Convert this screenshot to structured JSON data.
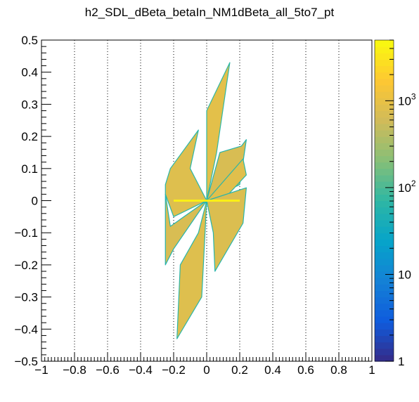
{
  "chart_data": {
    "type": "heatmap",
    "title": "h2_SDL_dBeta_betaIn_NM1dBeta_all_5to7_pt",
    "xlabel": "",
    "ylabel": "",
    "xlim": [
      -1,
      1
    ],
    "ylim": [
      -0.5,
      0.5
    ],
    "x_ticks": [
      -1,
      -0.8,
      -0.6,
      -0.4,
      -0.2,
      0,
      0.2,
      0.4,
      0.6,
      0.8,
      1
    ],
    "x_tick_labels": [
      "−1",
      "−0.8",
      "−0.6",
      "−0.4",
      "−0.2",
      "0",
      "0.2",
      "0.4",
      "0.6",
      "0.8",
      "1"
    ],
    "y_ticks": [
      -0.5,
      -0.4,
      -0.3,
      -0.2,
      -0.1,
      0,
      0.1,
      0.2,
      0.3,
      0.4,
      0.5
    ],
    "y_tick_labels": [
      "−0.5",
      "−0.4",
      "−0.3",
      "−0.2",
      "−0.1",
      "0",
      "0.1",
      "0.2",
      "0.3",
      "0.4",
      "0.5"
    ],
    "vertical_grid": true,
    "colorbar": {
      "scale": "log",
      "range": [
        1,
        5000
      ],
      "labels": [
        {
          "value": 1,
          "label": "1"
        },
        {
          "value": 10,
          "label": "10"
        },
        {
          "value": 100,
          "label": "10",
          "exp": "2"
        },
        {
          "value": 1000,
          "label": "10",
          "exp": "3"
        }
      ]
    },
    "regions": [
      {
        "name": "upper-left-band",
        "points": [
          [
            -0.25,
            0.05
          ],
          [
            -0.22,
            0.1
          ],
          [
            -0.05,
            0.22
          ],
          [
            -0.1,
            0.1
          ],
          [
            0,
            0
          ],
          [
            -0.2,
            -0.05
          ],
          [
            -0.25,
            0.02
          ]
        ],
        "level": 800
      },
      {
        "name": "upper-right-band",
        "points": [
          [
            0,
            0.28
          ],
          [
            0.14,
            0.43
          ],
          [
            0.06,
            0.15
          ],
          [
            0,
            0
          ]
        ],
        "level": 900
      },
      {
        "name": "upper-right-band-outer",
        "points": [
          [
            0,
            0
          ],
          [
            0.2,
            0.05
          ],
          [
            0.24,
            0.19
          ],
          [
            0.21,
            0.17
          ],
          [
            0.08,
            0.15
          ]
        ],
        "level": 700
      },
      {
        "name": "right-band",
        "points": [
          [
            0,
            0
          ],
          [
            0.22,
            0.13
          ],
          [
            0.24,
            0.08
          ],
          [
            0.06,
            -0.02
          ]
        ],
        "level": 850
      },
      {
        "name": "lower-right-band",
        "points": [
          [
            0,
            0
          ],
          [
            0.24,
            0.04
          ],
          [
            0.22,
            -0.07
          ],
          [
            0.05,
            -0.22
          ],
          [
            0.04,
            -0.1
          ]
        ],
        "level": 750
      },
      {
        "name": "lower-left-band",
        "points": [
          [
            -0.05,
            -0.1
          ],
          [
            0,
            0
          ],
          [
            -0.03,
            -0.3
          ],
          [
            -0.18,
            -0.43
          ],
          [
            -0.16,
            -0.2
          ]
        ],
        "level": 800
      },
      {
        "name": "left-wing",
        "points": [
          [
            -0.25,
            0.02
          ],
          [
            -0.25,
            -0.2
          ],
          [
            -0.22,
            -0.17
          ],
          [
            -0.2,
            -0.15
          ],
          [
            0,
            0
          ],
          [
            -0.22,
            -0.08
          ]
        ],
        "level": 700
      }
    ],
    "core_line": {
      "points": [
        [
          -0.2,
          0.0
        ],
        [
          0.0,
          0.0
        ],
        [
          0.2,
          0.0
        ]
      ],
      "level": 4000
    }
  }
}
